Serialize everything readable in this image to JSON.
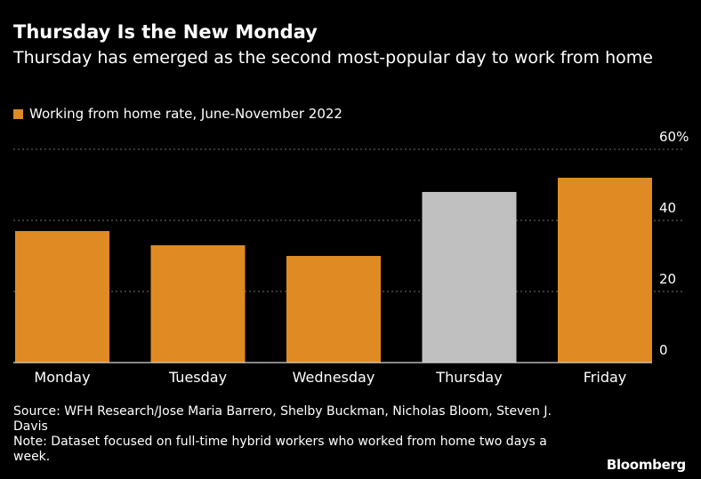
{
  "header": {
    "title": "Thursday Is the New Monday",
    "subtitle": "Thursday has emerged as the second most-popular day to work from home"
  },
  "legend": {
    "label": "Working from home rate, June-November 2022",
    "color": "#e08a24"
  },
  "footer": {
    "source": "Source: WFH Research/Jose Maria Barrero, Shelby Buckman, Nicholas Bloom, Steven J. Davis",
    "note": "Note: Dataset focused on full-time hybrid workers who worked from home two days a week.",
    "logo": "Bloomberg"
  },
  "colors": {
    "background": "#000000",
    "bar": "#e08a24",
    "highlight_bar": "#c0c0c0",
    "grid": "#6e6e6e",
    "axis": "#d8d8d8",
    "text": "#ffffff"
  },
  "chart_data": {
    "type": "bar",
    "categories": [
      "Monday",
      "Tuesday",
      "Wednesday",
      "Thursday",
      "Friday"
    ],
    "series": [
      {
        "name": "Working from home rate, June-November 2022",
        "values": [
          37,
          33,
          30,
          48,
          52
        ]
      }
    ],
    "highlight": [
      "Thursday"
    ],
    "ylim": [
      0,
      60
    ],
    "yticks": [
      0,
      20,
      40,
      60
    ],
    "ytick_labels": [
      "0",
      "20",
      "40",
      "60%"
    ],
    "ylabel": "",
    "xlabel": "",
    "grid": true,
    "y_axis_position": "right"
  }
}
